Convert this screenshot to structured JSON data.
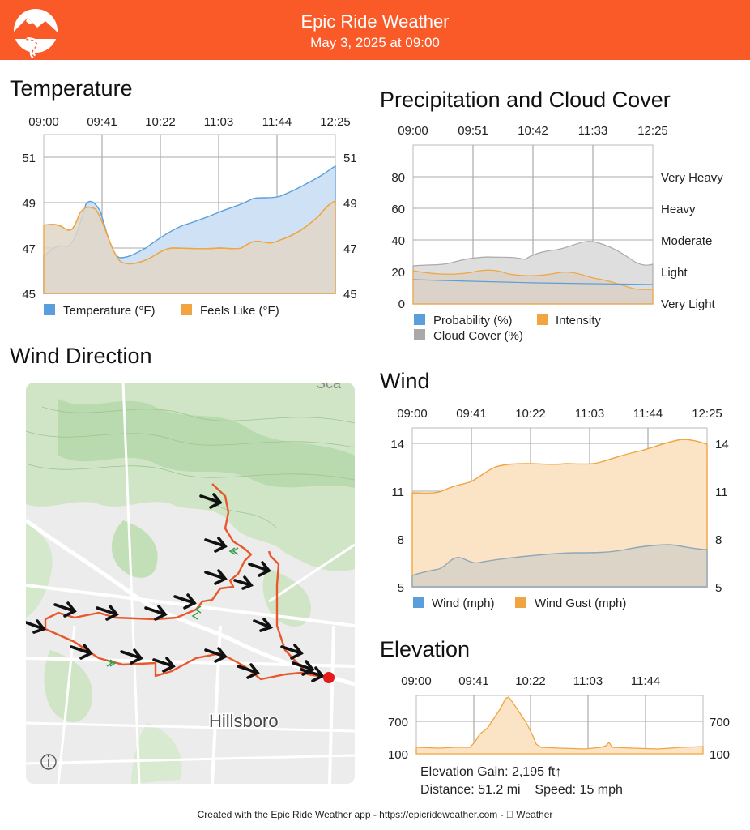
{
  "header": {
    "title": "Epic Ride Weather",
    "subtitle": "May 3, 2025 at 09:00",
    "logo_icon": "mountain-road-logo-icon",
    "color": "#fa5a28"
  },
  "temperature": {
    "title": "Temperature",
    "time_ticks": [
      "09:00",
      "09:41",
      "10:22",
      "11:03",
      "11:44",
      "12:25"
    ],
    "y_ticks": [
      "51",
      "49",
      "47",
      "45"
    ],
    "legend": [
      {
        "label": "Temperature (°F)",
        "color": "#5a9fdc"
      },
      {
        "label": "Feels Like (°F)",
        "color": "#f0a540"
      }
    ]
  },
  "precip": {
    "title": "Precipitation and Cloud Cover",
    "time_ticks": [
      "09:00",
      "09:51",
      "10:42",
      "11:33",
      "12:25"
    ],
    "y_ticks": [
      "80",
      "60",
      "40",
      "20",
      "0"
    ],
    "right_labels": [
      "Very Heavy",
      "Heavy",
      "Moderate",
      "Light",
      "Very Light"
    ],
    "legend": [
      {
        "label": "Probability (%)",
        "color": "#5a9fdc"
      },
      {
        "label": "Intensity",
        "color": "#f0a540"
      },
      {
        "label": "Cloud Cover (%)",
        "color": "#a9a9a9"
      }
    ]
  },
  "wind_direction": {
    "title": "Wind Direction",
    "map_label": "Hillsboro",
    "corner_label": "Sca",
    "info_icon": "info-icon",
    "route_color": "#e8582c",
    "arrow_icon": "wind-arrow-icon",
    "end_marker_icon": "route-end-marker-icon"
  },
  "wind": {
    "title": "Wind",
    "time_ticks": [
      "09:00",
      "09:41",
      "10:22",
      "11:03",
      "11:44",
      "12:25"
    ],
    "y_ticks": [
      "14",
      "11",
      "8",
      "5"
    ],
    "legend": [
      {
        "label": "Wind (mph)",
        "color": "#5a9fdc"
      },
      {
        "label": "Wind Gust (mph)",
        "color": "#f0a540"
      }
    ]
  },
  "elevation": {
    "title": "Elevation",
    "time_ticks": [
      "09:00",
      "09:41",
      "10:22",
      "11:03",
      "11:44"
    ],
    "y_ticks": [
      "700",
      "100"
    ],
    "gain_text": "Elevation Gain: 2,195 ft↑",
    "distance_text": "Distance: 51.2 mi",
    "speed_text": "Speed: 15 mph"
  },
  "footer": {
    "text": "Created with the Epic Ride Weather app - https://epicrideweather.com -  Weather"
  }
}
